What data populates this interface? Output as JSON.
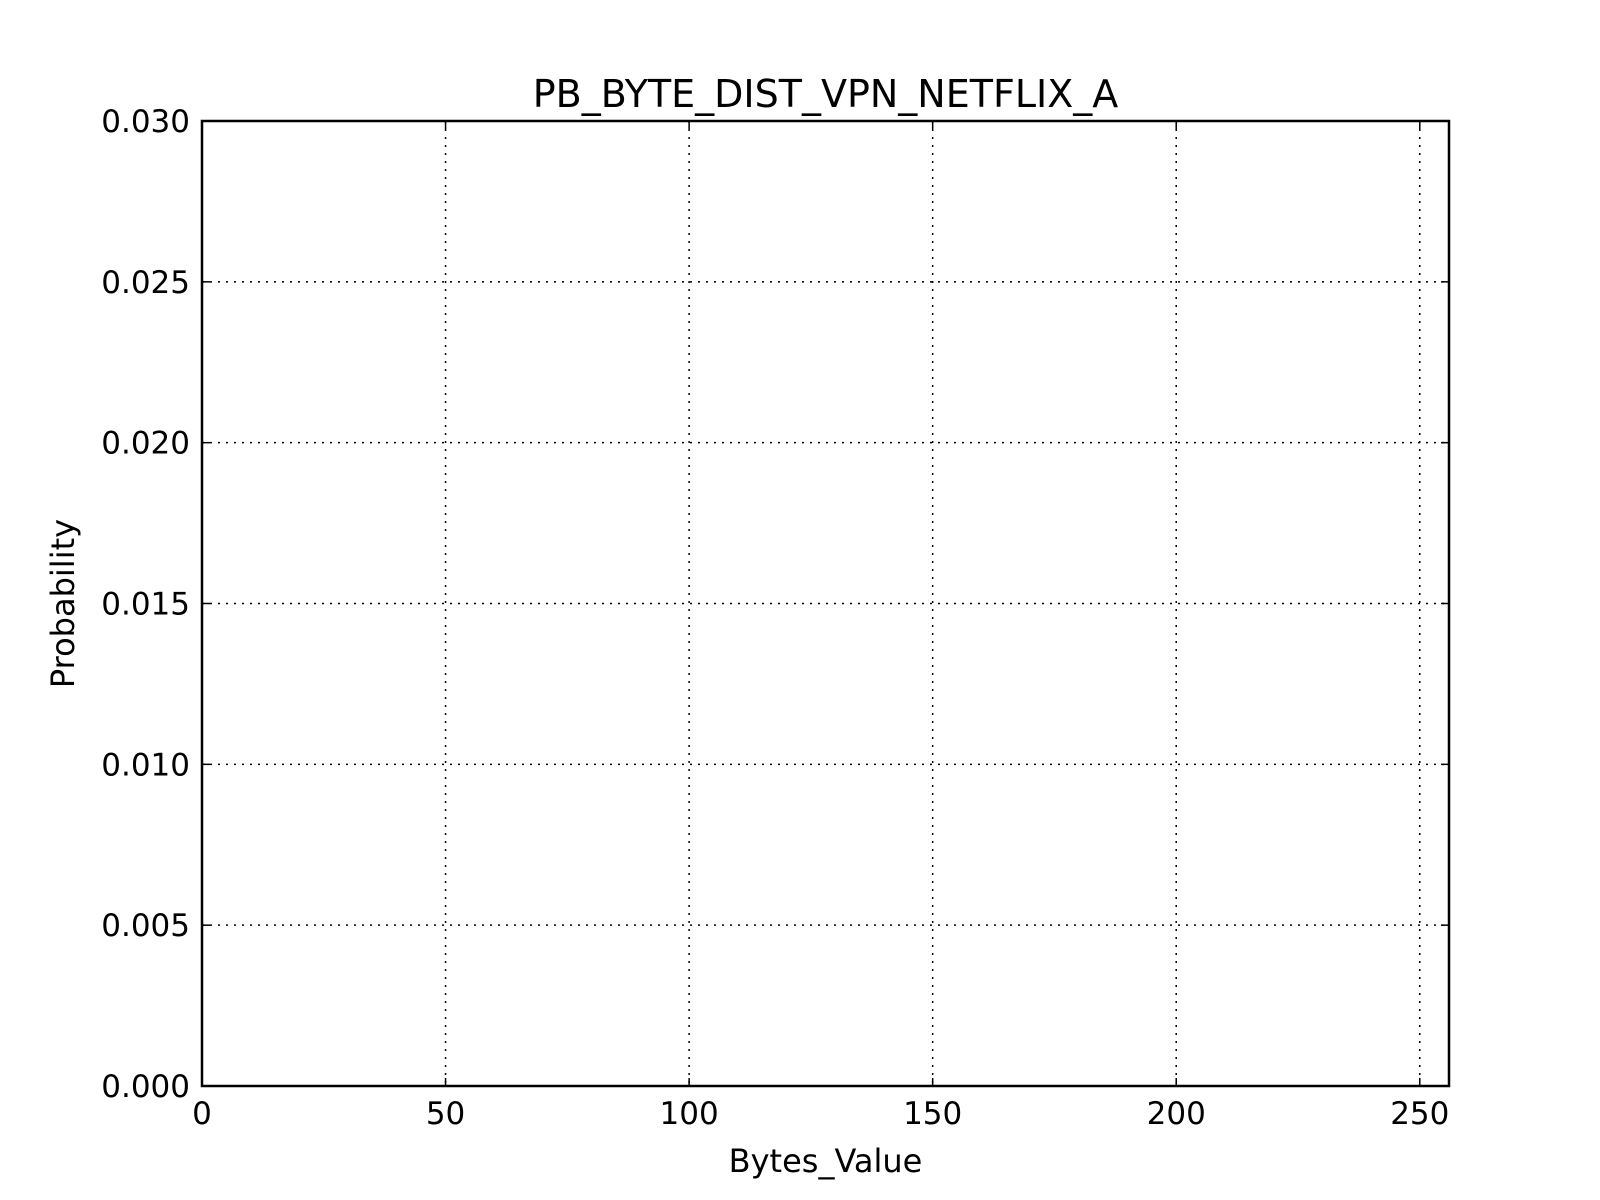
{
  "chart_data": {
    "type": "line",
    "title": "PB_BYTE_DIST_VPN_NETFLIX_A",
    "xlabel": "Bytes_Value",
    "ylabel": "Probability",
    "xlim": [
      0,
      256
    ],
    "ylim": [
      0,
      0.03
    ],
    "xticks": [
      0,
      50,
      100,
      150,
      200,
      250
    ],
    "xtick_labels": [
      "0",
      "50",
      "100",
      "150",
      "200",
      "250"
    ],
    "yticks": [
      0,
      0.005,
      0.01,
      0.015,
      0.02,
      0.025,
      0.03
    ],
    "ytick_labels": [
      "0.000",
      "0.005",
      "0.010",
      "0.015",
      "0.020",
      "0.025",
      "0.030"
    ],
    "grid": true,
    "series": []
  }
}
